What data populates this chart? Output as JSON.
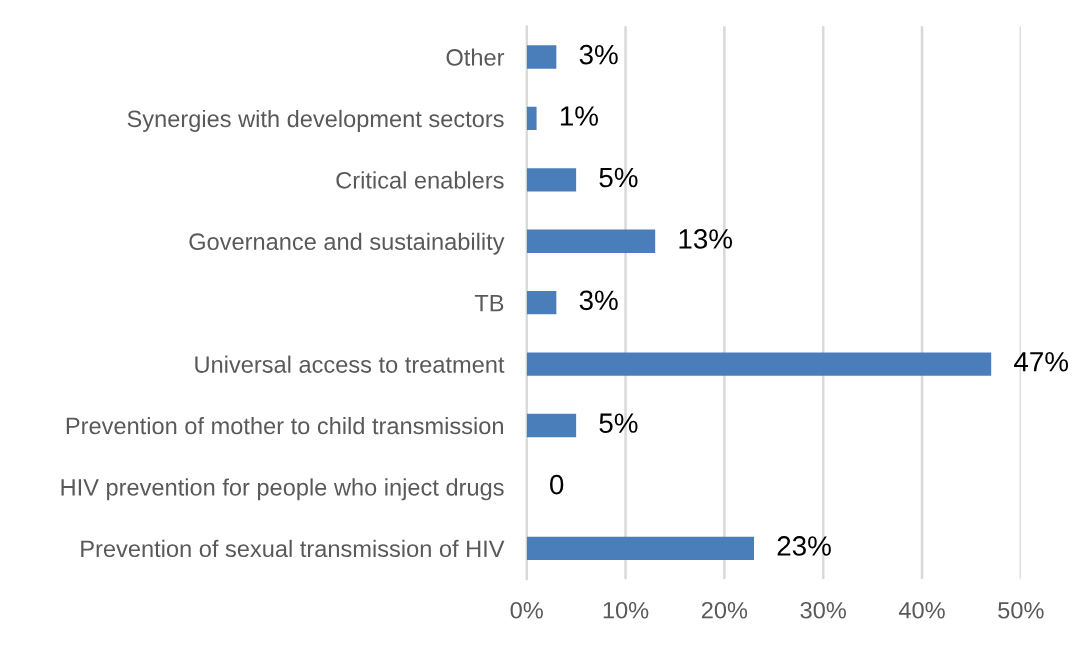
{
  "chart_data": {
    "type": "bar",
    "orientation": "horizontal",
    "categories": [
      "Other",
      "Synergies with development sectors",
      "Critical enablers",
      "Governance and sustainability",
      "TB",
      "Universal access to treatment",
      "Prevention of mother to child transmission",
      "HIV prevention for people who inject drugs",
      "Prevention of sexual transmission of HIV"
    ],
    "values": [
      3,
      1,
      5,
      13,
      3,
      47,
      5,
      0,
      23
    ],
    "value_labels": [
      "3%",
      "1%",
      "5%",
      "13%",
      "3%",
      "47%",
      "5%",
      "0",
      "23%"
    ],
    "color": "#4a7ebb",
    "xlim": [
      0,
      50
    ],
    "xticks": [
      {
        "value": 0,
        "label": "0%"
      },
      {
        "value": 10,
        "label": "10%"
      },
      {
        "value": 20,
        "label": "20%"
      },
      {
        "value": 30,
        "label": "30%"
      },
      {
        "value": 40,
        "label": "40%"
      },
      {
        "value": 50,
        "label": "50%"
      }
    ],
    "grid": "x",
    "legend": false
  }
}
